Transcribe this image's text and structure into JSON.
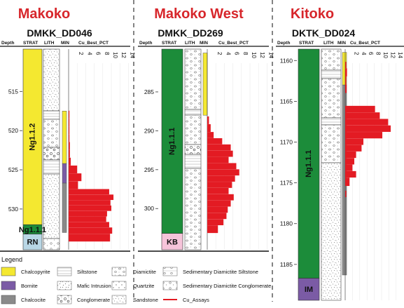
{
  "panels": [
    {
      "region": "Makoko",
      "hole": "DMKK_DD046",
      "headers": {
        "depth": "Depth",
        "strat": "STRAT",
        "lith": "LITH",
        "min": "MIN",
        "cu": "Cu_Best_PCT"
      },
      "cu_ticks": [
        "2",
        "4",
        "6",
        "8",
        "10",
        "12",
        "14"
      ],
      "depth_ticks": [
        {
          "label": "515",
          "depth": 515
        },
        {
          "label": "520",
          "depth": 520
        },
        {
          "label": "525",
          "depth": 525
        },
        {
          "label": "530",
          "depth": 530
        }
      ],
      "depth_range": [
        509.6,
        535.2
      ],
      "strat_units": [
        {
          "label": "Ng1.1.2",
          "from": 509.6,
          "to": 532.0,
          "color": "#f4e830"
        },
        {
          "label": "Ng1.1.1",
          "from": 532.0,
          "to": 533.2,
          "color": "#1c8c3a"
        },
        {
          "label": "RN",
          "from": 533.2,
          "to": 535.2,
          "color": "#b9d7e6"
        }
      ],
      "mineral_zones": [
        {
          "mineral": "Chalcopyrite",
          "from": 517.5,
          "to": 524.2
        },
        {
          "mineral": "Bornite",
          "from": 524.2,
          "to": 526.7
        },
        {
          "mineral": "Chalcocite",
          "from": 526.7,
          "to": 533.0
        }
      ],
      "cu_assays": [
        {
          "depth": 517.5,
          "value": 0.1
        },
        {
          "depth": 518.5,
          "value": 0.1
        },
        {
          "depth": 519.5,
          "value": 0.1
        },
        {
          "depth": 520.5,
          "value": 0.2
        },
        {
          "depth": 521.5,
          "value": 0.3
        },
        {
          "depth": 522.5,
          "value": 0.3
        },
        {
          "depth": 523.5,
          "value": 0.5
        },
        {
          "depth": 524.5,
          "value": 2.0
        },
        {
          "depth": 525.5,
          "value": 3.0
        },
        {
          "depth": 526.5,
          "value": 2.2
        },
        {
          "depth": 527.5,
          "value": 9.5
        },
        {
          "depth": 528.2,
          "value": 10.5
        },
        {
          "depth": 528.9,
          "value": 9.8
        },
        {
          "depth": 529.6,
          "value": 10.0
        },
        {
          "depth": 530.3,
          "value": 9.0
        },
        {
          "depth": 531.0,
          "value": 8.8
        },
        {
          "depth": 531.7,
          "value": 9.5
        },
        {
          "depth": 532.4,
          "value": 10.2
        },
        {
          "depth": 533.2,
          "value": 9.7
        }
      ]
    },
    {
      "region": "Makoko West",
      "hole": "DMKK_DD269",
      "headers": {
        "depth": "Depth",
        "strat": "STRAT",
        "lith": "LITH",
        "min": "MIN",
        "cu": "Cu_Best_PCT"
      },
      "cu_ticks": [
        "2",
        "4",
        "6",
        "8",
        "10",
        "12",
        "14"
      ],
      "depth_ticks": [
        {
          "label": "285",
          "depth": 285
        },
        {
          "label": "290",
          "depth": 290
        },
        {
          "label": "295",
          "depth": 295
        },
        {
          "label": "300",
          "depth": 300
        }
      ],
      "depth_range": [
        279.5,
        305.3
      ],
      "strat_units": [
        {
          "label": "Ng1.1.1",
          "from": 279.5,
          "to": 303.2,
          "color": "#1c8c3a"
        },
        {
          "label": "KB",
          "from": 303.2,
          "to": 305.3,
          "color": "#f6c4da"
        }
      ],
      "mineral_zones": [
        {
          "mineral": "Chalcopyrite",
          "from": 280.0,
          "to": 288.0
        }
      ],
      "cu_assays": [
        {
          "depth": 288.2,
          "value": 0.4
        },
        {
          "depth": 289.2,
          "value": 0.8
        },
        {
          "depth": 290.2,
          "value": 1.5
        },
        {
          "depth": 291.0,
          "value": 3.5
        },
        {
          "depth": 291.8,
          "value": 5.5
        },
        {
          "depth": 292.6,
          "value": 6.0
        },
        {
          "depth": 293.4,
          "value": 5.0
        },
        {
          "depth": 294.2,
          "value": 6.8
        },
        {
          "depth": 295.0,
          "value": 7.5
        },
        {
          "depth": 295.8,
          "value": 6.5
        },
        {
          "depth": 296.6,
          "value": 5.8
        },
        {
          "depth": 297.4,
          "value": 5.0
        },
        {
          "depth": 298.2,
          "value": 6.2
        },
        {
          "depth": 299.0,
          "value": 5.5
        },
        {
          "depth": 299.8,
          "value": 4.8
        },
        {
          "depth": 300.6,
          "value": 4.5
        },
        {
          "depth": 301.4,
          "value": 3.8
        },
        {
          "depth": 302.2,
          "value": 2.5
        }
      ]
    },
    {
      "region": "Kitoko",
      "hole": "DKTK_DD024",
      "headers": {
        "depth": "Depth",
        "strat": "STRAT",
        "lith": "LITH",
        "min": "MIN",
        "cu": "Cu_Best_PCT"
      },
      "cu_ticks": [
        "2",
        "4",
        "6",
        "8",
        "10",
        "12",
        "14"
      ],
      "depth_ticks": [
        {
          "label": "1160",
          "depth": 1160
        },
        {
          "label": "1165",
          "depth": 1165
        },
        {
          "label": "1170",
          "depth": 1170
        },
        {
          "label": "1175",
          "depth": 1175
        },
        {
          "label": "1180",
          "depth": 1180
        },
        {
          "label": "1185",
          "depth": 1185
        }
      ],
      "depth_range": [
        1158.6,
        1189.4
      ],
      "strat_units": [
        {
          "label": "Ng1.1.1",
          "from": 1158.6,
          "to": 1186.7,
          "color": "#1c8c3a"
        },
        {
          "label": "IM",
          "from": 1186.7,
          "to": 1189.4,
          "color": "#7b5ba5"
        }
      ],
      "mineral_zones": [
        {
          "mineral": "Chalcopyrite",
          "from": 1159.0,
          "to": 1163.0
        },
        {
          "mineral": "Chalcocite",
          "from": 1163.0,
          "to": 1186.3
        }
      ],
      "cu_assays": [
        {
          "depth": 1160.2,
          "value": 0.3
        },
        {
          "depth": 1161.0,
          "value": 0.5
        },
        {
          "depth": 1162.0,
          "value": 0.3
        },
        {
          "depth": 1163.0,
          "value": 0.4
        },
        {
          "depth": 1165.6,
          "value": 8.2
        },
        {
          "depth": 1166.4,
          "value": 9.5
        },
        {
          "depth": 1167.2,
          "value": 11.8
        },
        {
          "depth": 1168.0,
          "value": 12.5
        },
        {
          "depth": 1168.8,
          "value": 10.2
        },
        {
          "depth": 1169.6,
          "value": 5.0
        },
        {
          "depth": 1170.4,
          "value": 4.5
        },
        {
          "depth": 1171.2,
          "value": 3.0
        },
        {
          "depth": 1172.0,
          "value": 2.5
        },
        {
          "depth": 1172.8,
          "value": 2.0
        },
        {
          "depth": 1173.6,
          "value": 3.0
        },
        {
          "depth": 1174.4,
          "value": 1.2
        },
        {
          "depth": 1176.0,
          "value": 0.3
        }
      ]
    }
  ],
  "legend": {
    "title": "Legend",
    "items": [
      {
        "label": "Chalcopyrite",
        "kind": "box",
        "fill": "#f4e830"
      },
      {
        "label": "Bornite",
        "kind": "box",
        "fill": "#7b5ba5"
      },
      {
        "label": "Chalcocite",
        "kind": "box",
        "fill": "#8a8a8a"
      },
      {
        "label": "Siltstone",
        "kind": "pattern",
        "pattern": "siltstone"
      },
      {
        "label": "Mafic Intrusion",
        "kind": "pattern",
        "pattern": "mafic"
      },
      {
        "label": "Conglomerate",
        "kind": "pattern",
        "pattern": "conglomerate"
      },
      {
        "label": "Diamictite",
        "kind": "pattern",
        "pattern": "diamictite"
      },
      {
        "label": "Quartzite",
        "kind": "pattern",
        "pattern": "quartzite"
      },
      {
        "label": "Sandstone",
        "kind": "pattern",
        "pattern": "sandstone"
      },
      {
        "label": "Sedimentary Diamictite Siltstone",
        "kind": "pattern",
        "pattern": "sds"
      },
      {
        "label": "Sedimentary Diamictite Conglomerate",
        "kind": "pattern",
        "pattern": "sdc"
      },
      {
        "label": "Cu_Assays",
        "kind": "line",
        "color": "#e31b23"
      }
    ]
  },
  "colors": {
    "title_red": "#d7262b",
    "assay_red": "#e31b23",
    "chalcopyrite": "#f4e830",
    "bornite": "#7b5ba5",
    "chalcocite": "#8a8a8a"
  }
}
